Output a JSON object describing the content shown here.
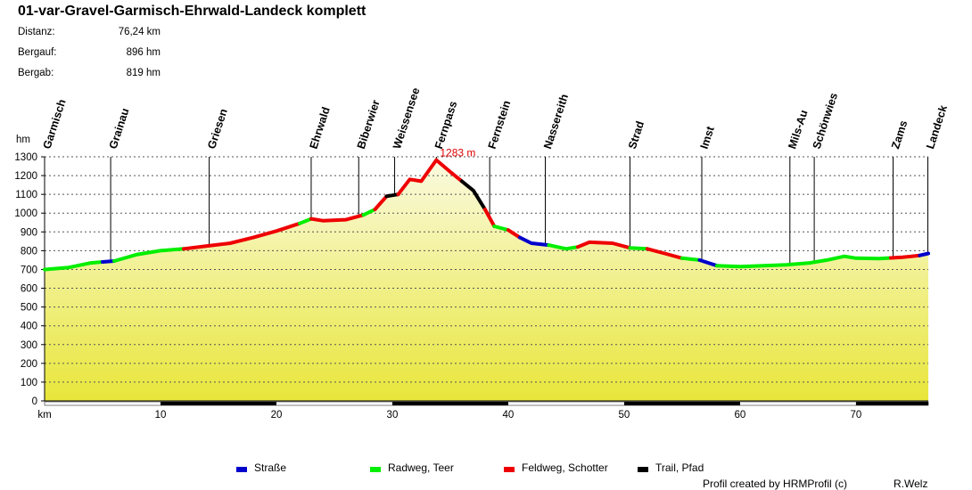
{
  "title": "01-var-Gravel-Garmisch-Ehrwald-Landeck komplett",
  "stats": [
    {
      "label": "Distanz:",
      "value": "76,24 km"
    },
    {
      "label": "Bergauf:",
      "value": "896 hm"
    },
    {
      "label": "Bergab:",
      "value": "819 hm"
    }
  ],
  "legend": [
    {
      "label": "Straße",
      "color": "#0000cc"
    },
    {
      "label": "Radweg, Teer",
      "color": "#00ee00"
    },
    {
      "label": "Feldweg, Schotter",
      "color": "#ee0000"
    },
    {
      "label": "Trail, Pfad",
      "color": "#000000"
    }
  ],
  "footer": {
    "credit": "Profil created by HRMProfil (c)",
    "author": "R.Welz"
  },
  "chart_data": {
    "type": "area",
    "xlabel": "km",
    "ylabel": "hm",
    "xlim": [
      0,
      76.24
    ],
    "ylim": [
      0,
      1300
    ],
    "xticks": [
      0,
      10,
      20,
      30,
      40,
      50,
      60,
      70
    ],
    "xtick_labels": [
      "km",
      "10",
      "20",
      "30",
      "40",
      "50",
      "60",
      "70"
    ],
    "yticks": [
      0,
      100,
      200,
      300,
      400,
      500,
      600,
      700,
      800,
      900,
      1000,
      1100,
      1200,
      1300
    ],
    "max_label": "1283 m",
    "max_point": {
      "km": 33.8,
      "hm": 1283
    },
    "places": [
      {
        "name": "Garmisch",
        "km": 0
      },
      {
        "name": "Grainau",
        "km": 5.7
      },
      {
        "name": "Griesen",
        "km": 14.2
      },
      {
        "name": "Ehrwald",
        "km": 23
      },
      {
        "name": "Biberwier",
        "km": 27.1
      },
      {
        "name": "Weissensee",
        "km": 30.2
      },
      {
        "name": "Fernpass",
        "km": 33.8
      },
      {
        "name": "Fernstein",
        "km": 38.4
      },
      {
        "name": "Nassereith",
        "km": 43.2
      },
      {
        "name": "Strad",
        "km": 50.5
      },
      {
        "name": "Imst",
        "km": 56.7
      },
      {
        "name": "Mils-Au",
        "km": 64.3
      },
      {
        "name": "Schönwies",
        "km": 66.4
      },
      {
        "name": "Zams",
        "km": 73.2
      },
      {
        "name": "Landeck",
        "km": 76.2
      }
    ],
    "profile": [
      {
        "km": 0,
        "hm": 700
      },
      {
        "km": 2,
        "hm": 710
      },
      {
        "km": 4,
        "hm": 735
      },
      {
        "km": 6,
        "hm": 745
      },
      {
        "km": 8,
        "hm": 780
      },
      {
        "km": 10,
        "hm": 800
      },
      {
        "km": 12,
        "hm": 810
      },
      {
        "km": 14,
        "hm": 825
      },
      {
        "km": 16,
        "hm": 840
      },
      {
        "km": 18,
        "hm": 870
      },
      {
        "km": 20,
        "hm": 905
      },
      {
        "km": 22,
        "hm": 945
      },
      {
        "km": 23,
        "hm": 970
      },
      {
        "km": 24,
        "hm": 960
      },
      {
        "km": 26,
        "hm": 965
      },
      {
        "km": 27.5,
        "hm": 990
      },
      {
        "km": 28.5,
        "hm": 1020
      },
      {
        "km": 29.5,
        "hm": 1090
      },
      {
        "km": 30.5,
        "hm": 1100
      },
      {
        "km": 31.5,
        "hm": 1180
      },
      {
        "km": 32.5,
        "hm": 1170
      },
      {
        "km": 33.8,
        "hm": 1283
      },
      {
        "km": 35,
        "hm": 1220
      },
      {
        "km": 36,
        "hm": 1170
      },
      {
        "km": 37,
        "hm": 1120
      },
      {
        "km": 38,
        "hm": 1020
      },
      {
        "km": 38.8,
        "hm": 930
      },
      {
        "km": 40,
        "hm": 910
      },
      {
        "km": 41,
        "hm": 870
      },
      {
        "km": 42,
        "hm": 840
      },
      {
        "km": 43.5,
        "hm": 830
      },
      {
        "km": 45,
        "hm": 810
      },
      {
        "km": 46,
        "hm": 820
      },
      {
        "km": 47,
        "hm": 845
      },
      {
        "km": 49,
        "hm": 840
      },
      {
        "km": 50.5,
        "hm": 815
      },
      {
        "km": 52,
        "hm": 810
      },
      {
        "km": 53.5,
        "hm": 785
      },
      {
        "km": 55,
        "hm": 760
      },
      {
        "km": 56.5,
        "hm": 750
      },
      {
        "km": 58,
        "hm": 720
      },
      {
        "km": 60,
        "hm": 715
      },
      {
        "km": 62,
        "hm": 720
      },
      {
        "km": 64,
        "hm": 725
      },
      {
        "km": 66,
        "hm": 735
      },
      {
        "km": 67.5,
        "hm": 750
      },
      {
        "km": 69,
        "hm": 770
      },
      {
        "km": 70,
        "hm": 760
      },
      {
        "km": 72,
        "hm": 758
      },
      {
        "km": 74,
        "hm": 765
      },
      {
        "km": 75.5,
        "hm": 775
      },
      {
        "km": 76.24,
        "hm": 785
      }
    ],
    "segments": [
      {
        "from": 0,
        "to": 5,
        "surface": "Radweg, Teer"
      },
      {
        "from": 5,
        "to": 6,
        "surface": "Straße"
      },
      {
        "from": 6,
        "to": 12,
        "surface": "Radweg, Teer"
      },
      {
        "from": 12,
        "to": 22,
        "surface": "Feldweg, Schotter"
      },
      {
        "from": 22,
        "to": 23,
        "surface": "Radweg, Teer"
      },
      {
        "from": 23,
        "to": 27.5,
        "surface": "Feldweg, Schotter"
      },
      {
        "from": 27.5,
        "to": 28.5,
        "surface": "Radweg, Teer"
      },
      {
        "from": 28.5,
        "to": 29.5,
        "surface": "Feldweg, Schotter"
      },
      {
        "from": 29.5,
        "to": 30.5,
        "surface": "Trail, Pfad"
      },
      {
        "from": 30.5,
        "to": 36,
        "surface": "Feldweg, Schotter"
      },
      {
        "from": 36,
        "to": 38,
        "surface": "Trail, Pfad"
      },
      {
        "from": 38,
        "to": 38.8,
        "surface": "Feldweg, Schotter"
      },
      {
        "from": 38.8,
        "to": 40,
        "surface": "Radweg, Teer"
      },
      {
        "from": 40,
        "to": 41,
        "surface": "Feldweg, Schotter"
      },
      {
        "from": 41,
        "to": 43.5,
        "surface": "Straße"
      },
      {
        "from": 43.5,
        "to": 46,
        "surface": "Radweg, Teer"
      },
      {
        "from": 46,
        "to": 50.5,
        "surface": "Feldweg, Schotter"
      },
      {
        "from": 50.5,
        "to": 52,
        "surface": "Radweg, Teer"
      },
      {
        "from": 52,
        "to": 55,
        "surface": "Feldweg, Schotter"
      },
      {
        "from": 55,
        "to": 56.5,
        "surface": "Radweg, Teer"
      },
      {
        "from": 56.5,
        "to": 58,
        "surface": "Straße"
      },
      {
        "from": 58,
        "to": 73,
        "surface": "Radweg, Teer"
      },
      {
        "from": 73,
        "to": 75.5,
        "surface": "Feldweg, Schotter"
      },
      {
        "from": 75.5,
        "to": 76.24,
        "surface": "Straße"
      }
    ]
  }
}
